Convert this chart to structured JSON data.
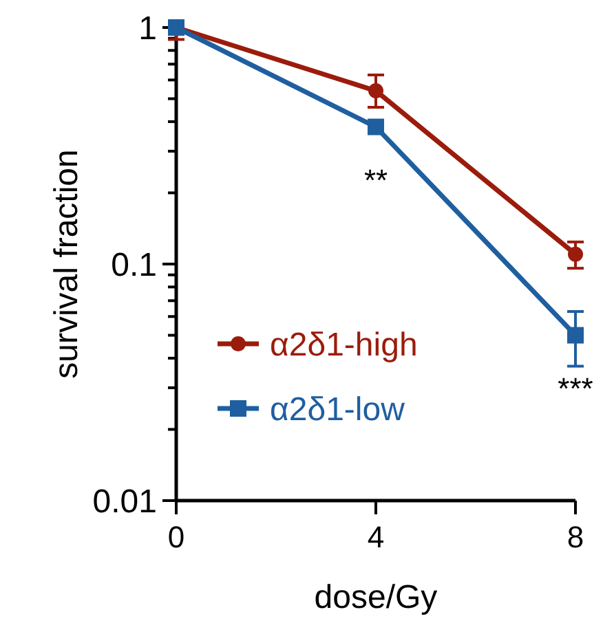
{
  "chart_data": {
    "type": "line",
    "xlabel": "dose/Gy",
    "ylabel": "survival fraction",
    "x": [
      0,
      4,
      8
    ],
    "xlim": [
      0,
      8
    ],
    "xticks": [
      0,
      4,
      8
    ],
    "ylim": [
      0.01,
      1
    ],
    "log": true,
    "yticks": [
      0.01,
      {
        "value": 0.02,
        "label": null
      },
      {
        "value": 0.03,
        "label": null
      },
      {
        "value": 0.04,
        "label": null
      },
      {
        "value": 0.05,
        "label": null
      },
      {
        "value": 0.06,
        "label": null
      },
      {
        "value": 0.07,
        "label": null
      },
      {
        "value": 0.08,
        "label": null
      },
      {
        "value": 0.09,
        "label": null
      },
      0.1,
      {
        "value": 0.2,
        "label": null
      },
      {
        "value": 0.3,
        "label": null
      },
      {
        "value": 0.4,
        "label": null
      },
      {
        "value": 0.5,
        "label": null
      },
      {
        "value": 0.6,
        "label": null
      },
      {
        "value": 0.7,
        "label": null
      },
      {
        "value": 0.8,
        "label": null
      },
      {
        "value": 0.9,
        "label": null
      },
      1
    ],
    "grid": false,
    "legend": "bottom left",
    "line_style": "solid",
    "series": [
      {
        "name": "α2δ1-high",
        "color": "#9b1c0c",
        "marker": "circle",
        "values": [
          1,
          0.54,
          0.11
        ],
        "errors": [
          [
            0.89,
            1
          ],
          [
            0.46,
            0.63
          ],
          [
            0.096,
            0.124
          ]
        ]
      },
      {
        "name": "α2δ1-low",
        "color": "#1f5fa0",
        "marker": "square",
        "values": [
          1,
          0.38,
          0.05
        ],
        "errors": [
          null,
          [
            0.36,
            0.4
          ],
          [
            0.037,
            0.063
          ]
        ]
      }
    ],
    "annotations": [
      {
        "text": "**",
        "x": 4,
        "y": 0.38
      },
      {
        "text": "***",
        "x": 8,
        "y": 0.05
      }
    ]
  }
}
